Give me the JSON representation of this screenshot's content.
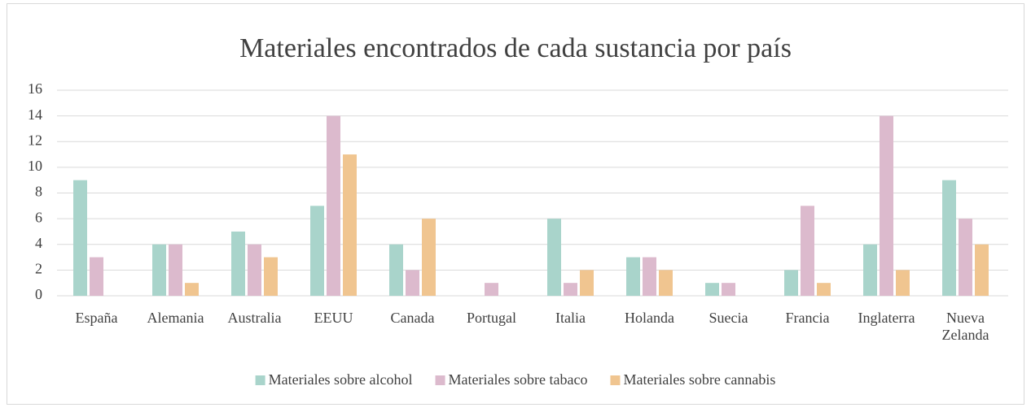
{
  "chart_data": {
    "type": "bar",
    "title": "Materiales encontrados de cada sustancia por país",
    "categories": [
      "España",
      "Alemania",
      "Australia",
      "EEUU",
      "Canada",
      "Portugal",
      "Italia",
      "Holanda",
      "Suecia",
      "Francia",
      "Inglaterra",
      "Nueva Zelanda"
    ],
    "series": [
      {
        "name": "Materiales sobre alcohol",
        "color": "#a9d4cb",
        "values": [
          9,
          4,
          5,
          7,
          4,
          0,
          6,
          3,
          1,
          2,
          4,
          9
        ]
      },
      {
        "name": "Materiales sobre tabaco",
        "color": "#dcbacd",
        "values": [
          3,
          4,
          4,
          14,
          2,
          1,
          1,
          3,
          1,
          7,
          14,
          6
        ]
      },
      {
        "name": "Materiales sobre cannabis",
        "color": "#f0c590",
        "values": [
          0,
          1,
          3,
          11,
          6,
          0,
          2,
          2,
          0,
          1,
          2,
          4
        ]
      }
    ],
    "ylim": [
      0,
      16
    ],
    "yticks": [
      0,
      2,
      4,
      6,
      8,
      10,
      12,
      14,
      16
    ],
    "grid": true,
    "legend": "bottom"
  }
}
